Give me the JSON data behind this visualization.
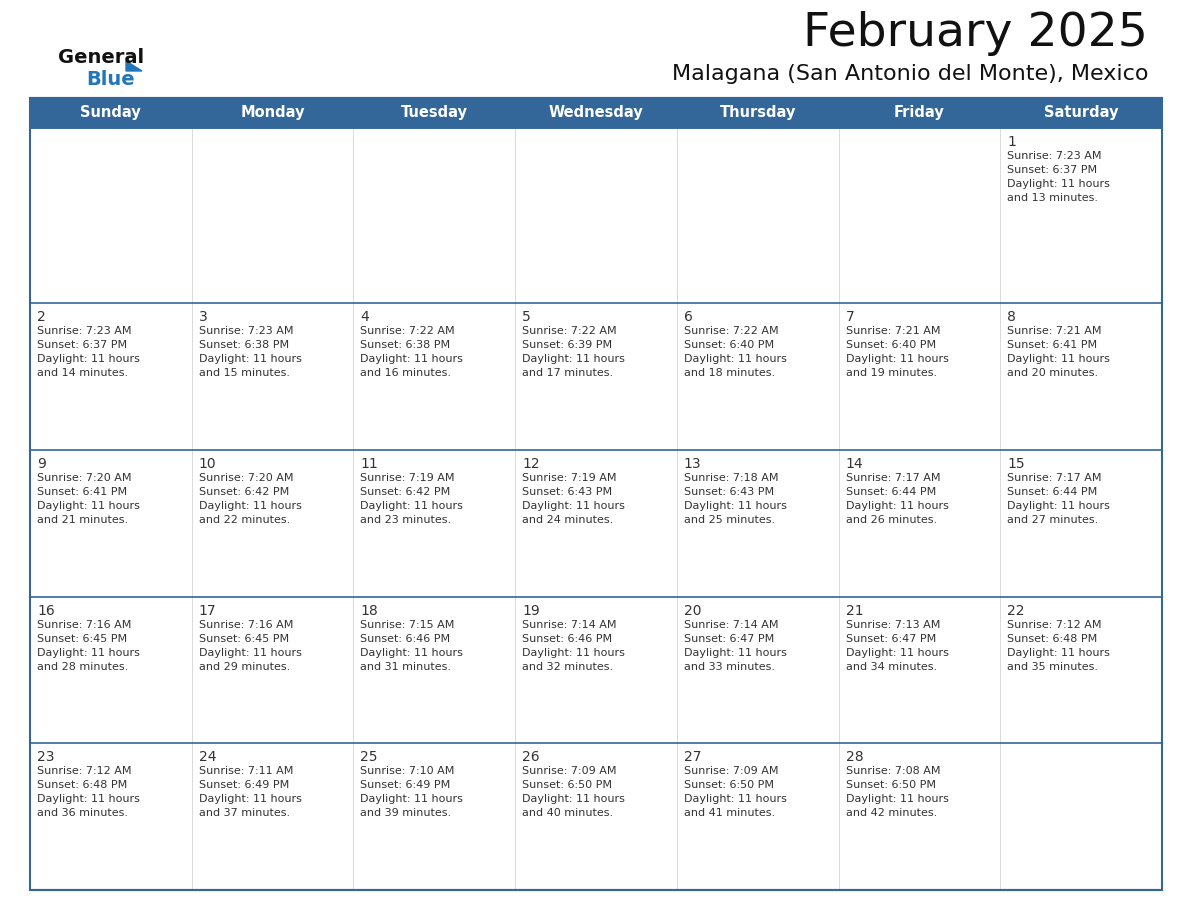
{
  "title": "February 2025",
  "subtitle": "Malagana (San Antonio del Monte), Mexico",
  "days_of_week": [
    "Sunday",
    "Monday",
    "Tuesday",
    "Wednesday",
    "Thursday",
    "Friday",
    "Saturday"
  ],
  "header_bg": "#336699",
  "header_text": "#ffffff",
  "cell_bg": "#ffffff",
  "row1_bg": "#f2f2f2",
  "divider_color": "#336699",
  "text_color": "#333333",
  "logo_general_color": "#111111",
  "logo_blue_color": "#2277bb",
  "calendar_data": [
    [
      null,
      null,
      null,
      null,
      null,
      null,
      {
        "day": 1,
        "sunrise": "7:23 AM",
        "sunset": "6:37 PM",
        "daylight": "11 hours and 13 minutes."
      }
    ],
    [
      {
        "day": 2,
        "sunrise": "7:23 AM",
        "sunset": "6:37 PM",
        "daylight": "11 hours and 14 minutes."
      },
      {
        "day": 3,
        "sunrise": "7:23 AM",
        "sunset": "6:38 PM",
        "daylight": "11 hours and 15 minutes."
      },
      {
        "day": 4,
        "sunrise": "7:22 AM",
        "sunset": "6:38 PM",
        "daylight": "11 hours and 16 minutes."
      },
      {
        "day": 5,
        "sunrise": "7:22 AM",
        "sunset": "6:39 PM",
        "daylight": "11 hours and 17 minutes."
      },
      {
        "day": 6,
        "sunrise": "7:22 AM",
        "sunset": "6:40 PM",
        "daylight": "11 hours and 18 minutes."
      },
      {
        "day": 7,
        "sunrise": "7:21 AM",
        "sunset": "6:40 PM",
        "daylight": "11 hours and 19 minutes."
      },
      {
        "day": 8,
        "sunrise": "7:21 AM",
        "sunset": "6:41 PM",
        "daylight": "11 hours and 20 minutes."
      }
    ],
    [
      {
        "day": 9,
        "sunrise": "7:20 AM",
        "sunset": "6:41 PM",
        "daylight": "11 hours and 21 minutes."
      },
      {
        "day": 10,
        "sunrise": "7:20 AM",
        "sunset": "6:42 PM",
        "daylight": "11 hours and 22 minutes."
      },
      {
        "day": 11,
        "sunrise": "7:19 AM",
        "sunset": "6:42 PM",
        "daylight": "11 hours and 23 minutes."
      },
      {
        "day": 12,
        "sunrise": "7:19 AM",
        "sunset": "6:43 PM",
        "daylight": "11 hours and 24 minutes."
      },
      {
        "day": 13,
        "sunrise": "7:18 AM",
        "sunset": "6:43 PM",
        "daylight": "11 hours and 25 minutes."
      },
      {
        "day": 14,
        "sunrise": "7:17 AM",
        "sunset": "6:44 PM",
        "daylight": "11 hours and 26 minutes."
      },
      {
        "day": 15,
        "sunrise": "7:17 AM",
        "sunset": "6:44 PM",
        "daylight": "11 hours and 27 minutes."
      }
    ],
    [
      {
        "day": 16,
        "sunrise": "7:16 AM",
        "sunset": "6:45 PM",
        "daylight": "11 hours and 28 minutes."
      },
      {
        "day": 17,
        "sunrise": "7:16 AM",
        "sunset": "6:45 PM",
        "daylight": "11 hours and 29 minutes."
      },
      {
        "day": 18,
        "sunrise": "7:15 AM",
        "sunset": "6:46 PM",
        "daylight": "11 hours and 31 minutes."
      },
      {
        "day": 19,
        "sunrise": "7:14 AM",
        "sunset": "6:46 PM",
        "daylight": "11 hours and 32 minutes."
      },
      {
        "day": 20,
        "sunrise": "7:14 AM",
        "sunset": "6:47 PM",
        "daylight": "11 hours and 33 minutes."
      },
      {
        "day": 21,
        "sunrise": "7:13 AM",
        "sunset": "6:47 PM",
        "daylight": "11 hours and 34 minutes."
      },
      {
        "day": 22,
        "sunrise": "7:12 AM",
        "sunset": "6:48 PM",
        "daylight": "11 hours and 35 minutes."
      }
    ],
    [
      {
        "day": 23,
        "sunrise": "7:12 AM",
        "sunset": "6:48 PM",
        "daylight": "11 hours and 36 minutes."
      },
      {
        "day": 24,
        "sunrise": "7:11 AM",
        "sunset": "6:49 PM",
        "daylight": "11 hours and 37 minutes."
      },
      {
        "day": 25,
        "sunrise": "7:10 AM",
        "sunset": "6:49 PM",
        "daylight": "11 hours and 39 minutes."
      },
      {
        "day": 26,
        "sunrise": "7:09 AM",
        "sunset": "6:50 PM",
        "daylight": "11 hours and 40 minutes."
      },
      {
        "day": 27,
        "sunrise": "7:09 AM",
        "sunset": "6:50 PM",
        "daylight": "11 hours and 41 minutes."
      },
      {
        "day": 28,
        "sunrise": "7:08 AM",
        "sunset": "6:50 PM",
        "daylight": "11 hours and 42 minutes."
      },
      null
    ]
  ]
}
